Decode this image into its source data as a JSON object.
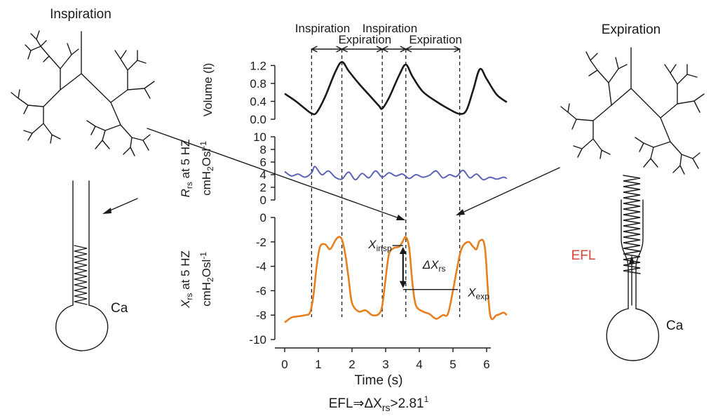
{
  "left_panel": {
    "title": "Inspiration",
    "airway_label": "Ca"
  },
  "right_panel": {
    "title": "Expiration",
    "efl_label": "EFL",
    "airway_label": "Ca"
  },
  "phases": [
    {
      "label": "Inspiration",
      "t0": 0.8,
      "t1": 1.7
    },
    {
      "label": "Expiration",
      "t0": 1.7,
      "t1": 2.9
    },
    {
      "label": "Inspiration",
      "t0": 2.9,
      "t1": 3.6
    },
    {
      "label": "Expiration",
      "t0": 3.6,
      "t1": 5.2
    }
  ],
  "annotations": {
    "x_insp": {
      "main": "X",
      "sub": "insp",
      "value": -2.3
    },
    "x_exp": {
      "main": "X",
      "sub": "exp",
      "value": -5.9
    },
    "delta": {
      "main": "ΔX",
      "sub": "rs"
    },
    "formula": {
      "pre": "EFL⇒ΔX",
      "sub": "rs",
      "post": ">2.81",
      "sup": "1"
    }
  },
  "colors": {
    "ink": "#1a1a1a",
    "rrs": "#5b63b5",
    "xrs": "#e87e1c",
    "efl": "#e2403a"
  },
  "chart_data": [
    {
      "type": "line",
      "xlabel": "",
      "ylabel": "Volume (l)",
      "xlim": [
        0,
        6.6
      ],
      "ylim": [
        0,
        1.3
      ],
      "yticks": [
        0.0,
        0.4,
        0.8,
        1.2
      ],
      "ytick_labels": [
        "0.0",
        "0.4",
        "0.8",
        "1.2"
      ],
      "series": [
        {
          "x": [
            0,
            0.3,
            0.6,
            0.8,
            0.95,
            1.2,
            1.5,
            1.7,
            1.9,
            2.2,
            2.5,
            2.8,
            2.9,
            3.1,
            3.4,
            3.6,
            3.8,
            4.1,
            4.5,
            4.9,
            5.2,
            5.4,
            5.6,
            5.8,
            6.0,
            6.3,
            6.6
          ],
          "y": [
            0.57,
            0.42,
            0.24,
            0.13,
            0.15,
            0.5,
            1.05,
            1.28,
            1.08,
            0.8,
            0.55,
            0.3,
            0.24,
            0.48,
            0.98,
            1.22,
            0.95,
            0.62,
            0.4,
            0.22,
            0.12,
            0.2,
            0.65,
            1.12,
            0.9,
            0.55,
            0.38
          ]
        }
      ]
    },
    {
      "type": "line",
      "xlabel": "",
      "ylabel": "R_rs at 5 HZ cmH2Osl^-1",
      "ylabel_parts": {
        "r": "R",
        "r_sub": "rs",
        "r_rest": " at 5 HZ",
        "unit_a": "cmH",
        "unit_sub": "2",
        "unit_b": "Osl",
        "unit_sup": "-1"
      },
      "xlim": [
        0,
        6.6
      ],
      "ylim": [
        0,
        10
      ],
      "yticks": [
        0,
        2,
        4,
        6,
        8,
        10
      ],
      "ytick_labels": [
        "0",
        "2",
        "4",
        "6",
        "8",
        "10"
      ],
      "series": [
        {
          "x": [
            0,
            0.2,
            0.4,
            0.6,
            0.8,
            0.9,
            1.1,
            1.3,
            1.5,
            1.7,
            1.9,
            2.1,
            2.3,
            2.5,
            2.7,
            2.9,
            3.1,
            3.3,
            3.5,
            3.7,
            3.9,
            4.1,
            4.3,
            4.5,
            4.7,
            4.9,
            5.1,
            5.3,
            5.5,
            5.7,
            5.9,
            6.1,
            6.3,
            6.5,
            6.6
          ],
          "y": [
            4.5,
            3.8,
            4.1,
            3.6,
            4.3,
            5.3,
            4.0,
            4.6,
            3.6,
            3.3,
            4.4,
            3.2,
            4.2,
            3.5,
            4.6,
            3.6,
            4.3,
            3.8,
            4.1,
            3.4,
            4.0,
            3.6,
            3.9,
            4.6,
            3.5,
            4.0,
            3.7,
            4.7,
            3.5,
            4.1,
            3.2,
            3.6,
            3.3,
            3.6,
            3.4
          ]
        }
      ]
    },
    {
      "type": "line",
      "xlabel": "Time (s)",
      "ylabel": "X_rs at 5 HZ cmH2Osl^-1",
      "ylabel_parts": {
        "r": "X",
        "r_sub": "rs",
        "r_rest": " at 5 HZ",
        "unit_a": "cmH",
        "unit_sub": "2",
        "unit_b": "Osl",
        "unit_sup": "-1"
      },
      "xlim": [
        0,
        6.6
      ],
      "ylim": [
        -10,
        0
      ],
      "xticks": [
        0,
        1,
        2,
        3,
        4,
        5,
        6
      ],
      "xtick_labels": [
        "0",
        "1",
        "2",
        "3",
        "4",
        "5",
        "6"
      ],
      "yticks": [
        0,
        -2,
        -4,
        -6,
        -8,
        -10
      ],
      "ytick_labels": [
        "0",
        "-2",
        "-4",
        "-6",
        "-8",
        "-10"
      ],
      "series": [
        {
          "x": [
            0,
            0.2,
            0.4,
            0.6,
            0.75,
            0.85,
            0.95,
            1.05,
            1.2,
            1.35,
            1.5,
            1.6,
            1.7,
            1.8,
            1.9,
            2.0,
            2.2,
            2.4,
            2.6,
            2.8,
            2.9,
            3.0,
            3.1,
            3.25,
            3.4,
            3.5,
            3.6,
            3.7,
            3.8,
            3.9,
            4.1,
            4.3,
            4.5,
            4.7,
            4.85,
            5.0,
            5.1,
            5.25,
            5.45,
            5.6,
            5.7,
            5.8,
            5.95,
            6.1,
            6.3,
            6.5,
            6.6
          ],
          "y": [
            -8.6,
            -8.2,
            -8.1,
            -8.0,
            -7.8,
            -6.5,
            -4.0,
            -2.4,
            -2.2,
            -2.6,
            -1.9,
            -1.6,
            -1.8,
            -3.0,
            -5.0,
            -7.0,
            -7.7,
            -7.6,
            -8.0,
            -7.9,
            -7.2,
            -5.0,
            -3.0,
            -2.5,
            -2.4,
            -2.0,
            -1.6,
            -2.5,
            -5.5,
            -7.2,
            -7.7,
            -7.9,
            -8.3,
            -8.0,
            -7.9,
            -6.0,
            -4.5,
            -2.6,
            -2.0,
            -2.4,
            -2.6,
            -1.9,
            -2.5,
            -7.9,
            -8.0,
            -7.8,
            -8.0
          ]
        }
      ]
    }
  ]
}
